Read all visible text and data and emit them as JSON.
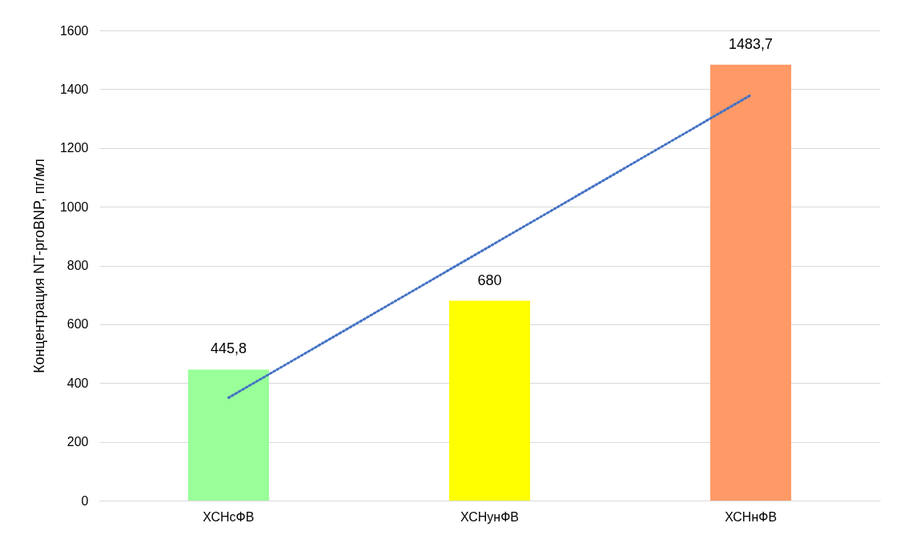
{
  "chart_data": {
    "type": "bar",
    "ylabel": "Концентрация NT-proBNP, пг/мл",
    "categories": [
      "ХСНсФВ",
      "ХСНунФВ",
      "ХСНнФВ"
    ],
    "series": [
      {
        "colors": [
          "#99ff99",
          "#ffff00",
          "#ff9966"
        ],
        "values": [
          445.8,
          680,
          1483.7
        ],
        "value_labels": [
          "445,8",
          "680",
          "1483,7"
        ]
      },
      {
        "type": "line",
        "x": [
          "ХСНсФВ",
          "ХСНнФВ"
        ],
        "values": [
          350,
          1380
        ],
        "color": "#4472c4",
        "line_style": "dotted"
      }
    ],
    "ylim": [
      0,
      1600
    ],
    "yticks": [
      0,
      200,
      400,
      600,
      800,
      1000,
      1200,
      1400,
      1600
    ],
    "grid": "y"
  }
}
